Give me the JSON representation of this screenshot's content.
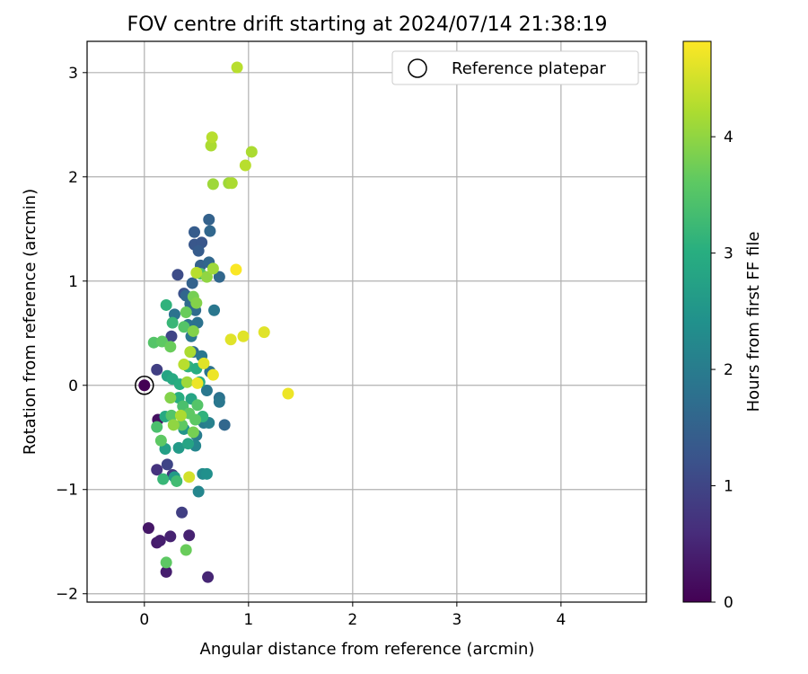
{
  "chart_data": {
    "type": "scatter",
    "title": "FOV centre drift starting at 2024/07/14 21:38:19",
    "xlabel": "Angular distance from reference (arcmin)",
    "ylabel": "Rotation from reference (arcmin)",
    "xlim": [
      -0.55,
      4.82
    ],
    "ylim": [
      -2.08,
      3.3
    ],
    "xticks": [
      0,
      1,
      2,
      3,
      4
    ],
    "yticks": [
      -2,
      -1,
      0,
      1,
      2,
      3
    ],
    "xtick_labels": [
      "0",
      "1",
      "2",
      "3",
      "4"
    ],
    "ytick_labels": [
      "−2",
      "−1",
      "0",
      "1",
      "2",
      "3"
    ],
    "grid": true,
    "legend": {
      "position": "top-right",
      "label": "Reference platepar"
    },
    "colorbar": {
      "label": "Hours from first FF file",
      "colormap": "viridis",
      "range": [
        0,
        4.82
      ],
      "ticks": [
        0,
        1,
        2,
        3,
        4
      ],
      "tick_labels": [
        "0",
        "1",
        "2",
        "3",
        "4"
      ]
    },
    "reference_point": {
      "x": 0,
      "y": 0,
      "c": 0
    },
    "points": [
      {
        "x": 0.13,
        "y": -0.33,
        "c": 0.2
      },
      {
        "x": 0.04,
        "y": -1.37,
        "c": 0.3
      },
      {
        "x": 0.12,
        "y": -1.51,
        "c": 0.35
      },
      {
        "x": 0.15,
        "y": -1.49,
        "c": 0.4
      },
      {
        "x": 0.21,
        "y": -1.79,
        "c": 0.4
      },
      {
        "x": 0.25,
        "y": -1.45,
        "c": 0.45
      },
      {
        "x": 0.43,
        "y": -1.44,
        "c": 0.45
      },
      {
        "x": 0.61,
        "y": -1.84,
        "c": 0.5
      },
      {
        "x": 0.12,
        "y": -0.81,
        "c": 0.7
      },
      {
        "x": 0.27,
        "y": -0.86,
        "c": 0.8
      },
      {
        "x": 0.36,
        "y": -1.22,
        "c": 0.9
      },
      {
        "x": 0.22,
        "y": -0.76,
        "c": 1.0
      },
      {
        "x": 0.12,
        "y": 0.15,
        "c": 0.9
      },
      {
        "x": 0.26,
        "y": 0.47,
        "c": 1.0
      },
      {
        "x": 0.32,
        "y": 1.06,
        "c": 1.1
      },
      {
        "x": 0.38,
        "y": 0.88,
        "c": 1.2
      },
      {
        "x": 0.48,
        "y": 1.35,
        "c": 1.3
      },
      {
        "x": 0.48,
        "y": 1.47,
        "c": 1.4
      },
      {
        "x": 0.55,
        "y": 1.37,
        "c": 1.3
      },
      {
        "x": 0.62,
        "y": 1.59,
        "c": 1.5
      },
      {
        "x": 0.63,
        "y": 1.48,
        "c": 1.6
      },
      {
        "x": 0.52,
        "y": 1.29,
        "c": 1.4
      },
      {
        "x": 0.54,
        "y": 1.15,
        "c": 1.5
      },
      {
        "x": 0.62,
        "y": 1.18,
        "c": 1.6
      },
      {
        "x": 0.46,
        "y": 0.98,
        "c": 1.5
      },
      {
        "x": 0.4,
        "y": 0.86,
        "c": 1.6
      },
      {
        "x": 0.44,
        "y": 0.78,
        "c": 1.7
      },
      {
        "x": 0.49,
        "y": 0.72,
        "c": 1.7
      },
      {
        "x": 0.42,
        "y": 0.58,
        "c": 1.8
      },
      {
        "x": 0.51,
        "y": 0.6,
        "c": 1.8
      },
      {
        "x": 0.72,
        "y": 1.04,
        "c": 1.6
      },
      {
        "x": 0.67,
        "y": 0.72,
        "c": 1.9
      },
      {
        "x": 0.45,
        "y": 0.47,
        "c": 1.9
      },
      {
        "x": 0.29,
        "y": 0.68,
        "c": 1.8
      },
      {
        "x": 0.47,
        "y": 0.32,
        "c": 1.7
      },
      {
        "x": 0.55,
        "y": 0.28,
        "c": 1.9
      },
      {
        "x": 0.63,
        "y": 0.13,
        "c": 1.8
      },
      {
        "x": 0.6,
        "y": -0.05,
        "c": 1.9
      },
      {
        "x": 0.72,
        "y": -0.12,
        "c": 1.8
      },
      {
        "x": 0.72,
        "y": -0.16,
        "c": 1.9
      },
      {
        "x": 0.77,
        "y": -0.38,
        "c": 1.6
      },
      {
        "x": 0.57,
        "y": -0.36,
        "c": 2.0
      },
      {
        "x": 0.62,
        "y": -0.36,
        "c": 2.1
      },
      {
        "x": 0.5,
        "y": -0.48,
        "c": 2.0
      },
      {
        "x": 0.49,
        "y": -0.58,
        "c": 2.2
      },
      {
        "x": 0.56,
        "y": -0.85,
        "c": 2.3
      },
      {
        "x": 0.6,
        "y": -0.85,
        "c": 2.4
      },
      {
        "x": 0.52,
        "y": -1.02,
        "c": 2.2
      },
      {
        "x": 0.38,
        "y": -0.42,
        "c": 2.5
      },
      {
        "x": 0.33,
        "y": -0.6,
        "c": 2.6
      },
      {
        "x": 0.42,
        "y": -0.56,
        "c": 2.8
      },
      {
        "x": 0.29,
        "y": -0.88,
        "c": 2.6
      },
      {
        "x": 0.2,
        "y": -0.61,
        "c": 2.7
      },
      {
        "x": 0.2,
        "y": -0.3,
        "c": 2.9
      },
      {
        "x": 0.22,
        "y": 0.09,
        "c": 2.8
      },
      {
        "x": 0.27,
        "y": 0.06,
        "c": 2.9
      },
      {
        "x": 0.34,
        "y": 0.01,
        "c": 3.0
      },
      {
        "x": 0.45,
        "y": -0.13,
        "c": 2.8
      },
      {
        "x": 0.53,
        "y": 0.03,
        "c": 3.0
      },
      {
        "x": 0.56,
        "y": -0.3,
        "c": 3.1
      },
      {
        "x": 0.33,
        "y": -0.12,
        "c": 3.0
      },
      {
        "x": 0.42,
        "y": 0.18,
        "c": 3.1
      },
      {
        "x": 0.5,
        "y": 0.16,
        "c": 3.0
      },
      {
        "x": 0.21,
        "y": 0.77,
        "c": 3.1
      },
      {
        "x": 0.27,
        "y": 0.6,
        "c": 3.2
      },
      {
        "x": 0.18,
        "y": -0.9,
        "c": 3.2
      },
      {
        "x": 0.31,
        "y": -0.92,
        "c": 3.3
      },
      {
        "x": 0.21,
        "y": -1.7,
        "c": 3.6
      },
      {
        "x": 0.4,
        "y": -1.58,
        "c": 3.7
      },
      {
        "x": 0.16,
        "y": -0.53,
        "c": 3.6
      },
      {
        "x": 0.12,
        "y": -0.4,
        "c": 3.4
      },
      {
        "x": 0.26,
        "y": -0.29,
        "c": 3.5
      },
      {
        "x": 0.37,
        "y": -0.2,
        "c": 3.4
      },
      {
        "x": 0.43,
        "y": -0.27,
        "c": 3.6
      },
      {
        "x": 0.49,
        "y": -0.33,
        "c": 3.6
      },
      {
        "x": 0.51,
        "y": -0.19,
        "c": 3.5
      },
      {
        "x": 0.36,
        "y": -0.38,
        "c": 3.6
      },
      {
        "x": 0.47,
        "y": -0.45,
        "c": 3.8
      },
      {
        "x": 0.25,
        "y": -0.12,
        "c": 3.9
      },
      {
        "x": 0.09,
        "y": 0.41,
        "c": 3.5
      },
      {
        "x": 0.17,
        "y": 0.42,
        "c": 3.6
      },
      {
        "x": 0.25,
        "y": 0.37,
        "c": 3.7
      },
      {
        "x": 0.38,
        "y": 0.56,
        "c": 3.5
      },
      {
        "x": 0.4,
        "y": 0.7,
        "c": 3.7
      },
      {
        "x": 0.47,
        "y": 0.52,
        "c": 3.9
      },
      {
        "x": 0.47,
        "y": 0.85,
        "c": 3.8
      },
      {
        "x": 0.5,
        "y": 0.79,
        "c": 3.9
      },
      {
        "x": 0.54,
        "y": 1.07,
        "c": 3.5
      },
      {
        "x": 0.6,
        "y": 1.04,
        "c": 4.0
      },
      {
        "x": 0.66,
        "y": 1.12,
        "c": 4.1
      },
      {
        "x": 0.5,
        "y": 1.08,
        "c": 4.3
      },
      {
        "x": 0.44,
        "y": 0.32,
        "c": 4.2
      },
      {
        "x": 0.38,
        "y": 0.2,
        "c": 4.3
      },
      {
        "x": 0.41,
        "y": 0.03,
        "c": 4.1
      },
      {
        "x": 0.35,
        "y": -0.29,
        "c": 4.2
      },
      {
        "x": 0.28,
        "y": -0.38,
        "c": 4.0
      },
      {
        "x": 0.66,
        "y": 1.93,
        "c": 4.1
      },
      {
        "x": 0.81,
        "y": 1.94,
        "c": 4.1
      },
      {
        "x": 0.84,
        "y": 1.94,
        "c": 4.2
      },
      {
        "x": 0.97,
        "y": 2.11,
        "c": 4.3
      },
      {
        "x": 1.03,
        "y": 2.24,
        "c": 4.2
      },
      {
        "x": 0.64,
        "y": 2.3,
        "c": 4.2
      },
      {
        "x": 0.65,
        "y": 2.38,
        "c": 4.3
      },
      {
        "x": 0.89,
        "y": 3.05,
        "c": 4.3
      },
      {
        "x": 0.51,
        "y": 0.02,
        "c": 4.7
      },
      {
        "x": 0.57,
        "y": 0.21,
        "c": 4.6
      },
      {
        "x": 0.66,
        "y": 0.1,
        "c": 4.7
      },
      {
        "x": 0.83,
        "y": 0.44,
        "c": 4.6
      },
      {
        "x": 0.95,
        "y": 0.47,
        "c": 4.6
      },
      {
        "x": 1.15,
        "y": 0.51,
        "c": 4.6
      },
      {
        "x": 0.88,
        "y": 1.11,
        "c": 4.8
      },
      {
        "x": 1.38,
        "y": -0.08,
        "c": 4.7
      },
      {
        "x": 0.43,
        "y": -0.88,
        "c": 4.5
      }
    ]
  }
}
